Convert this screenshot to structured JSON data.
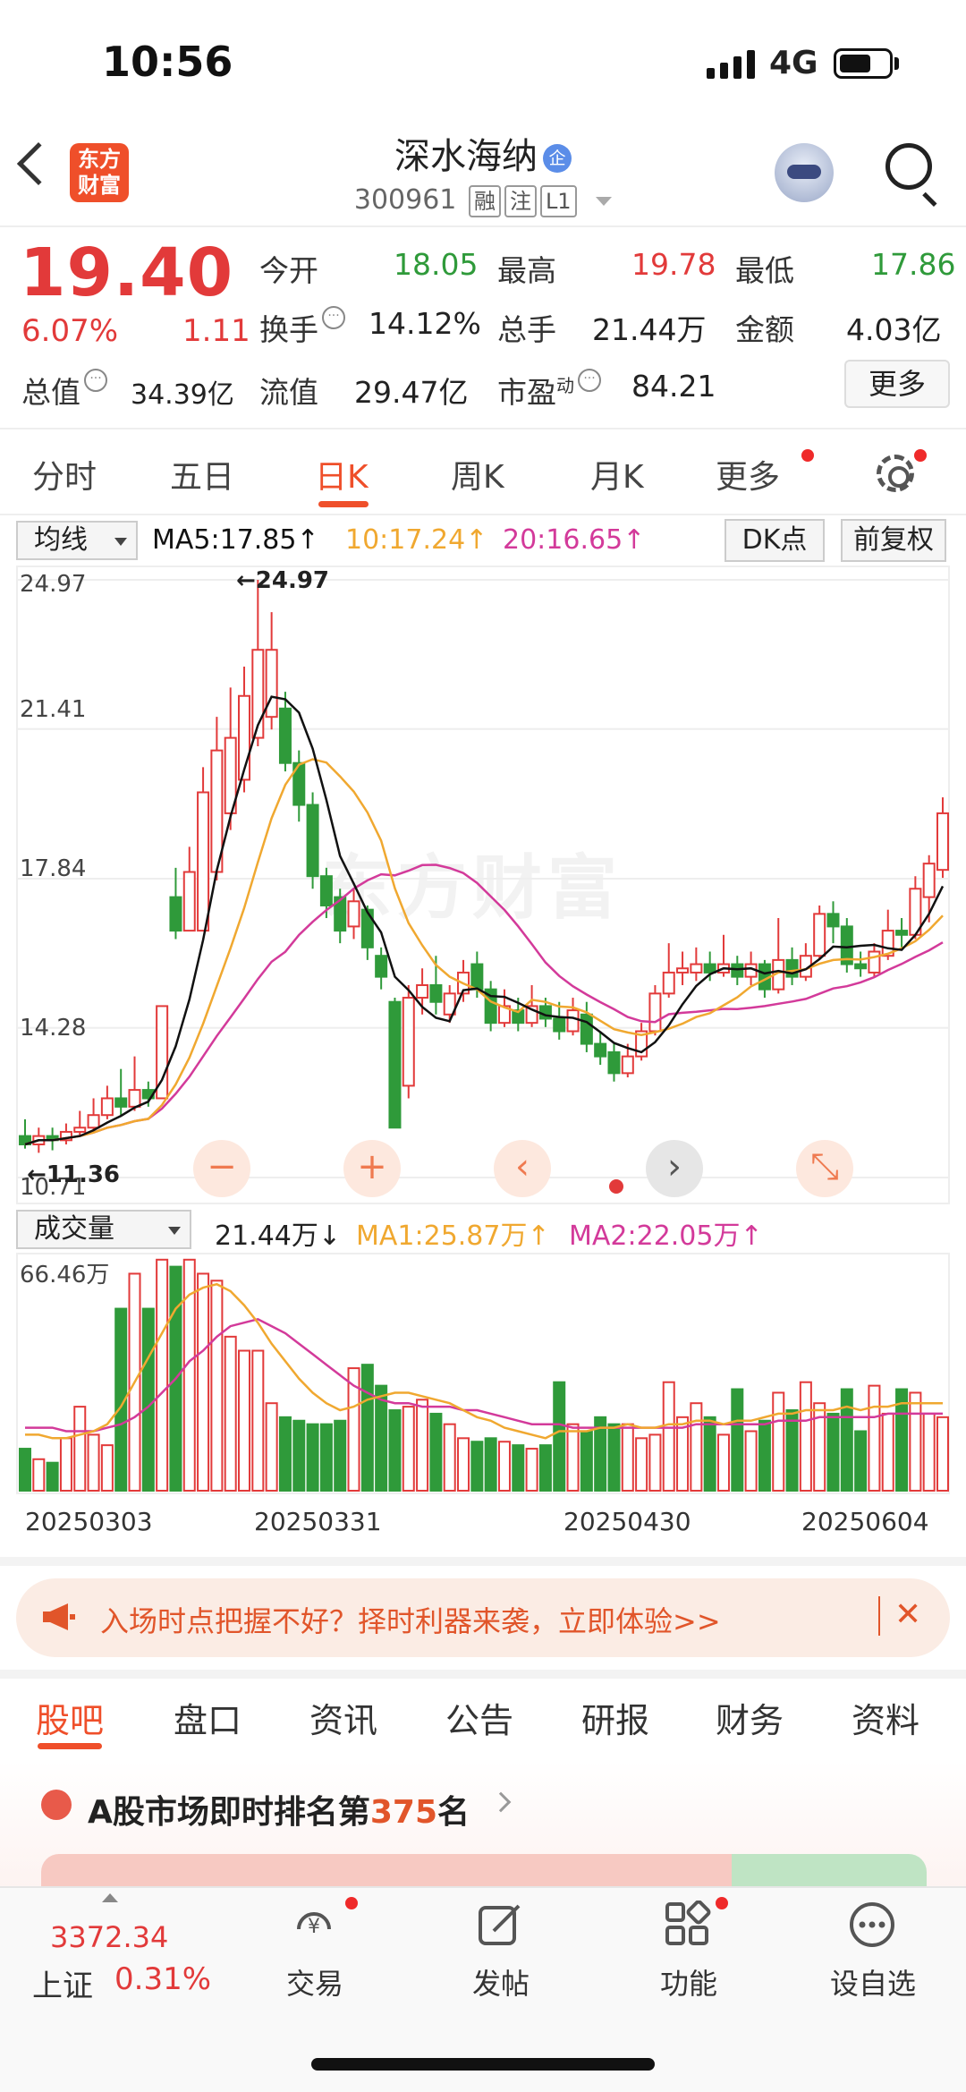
{
  "status_bar": {
    "time": "10:56",
    "network": "4G"
  },
  "header": {
    "logo_line1": "东方",
    "logo_line2": "财富",
    "stock_name": "深水海纳",
    "name_badge": "企",
    "stock_code": "300961",
    "tags": [
      "融",
      "注",
      "L1"
    ]
  },
  "quote": {
    "price": "19.40",
    "change_pct": "6.07%",
    "change": "1.11",
    "open_label": "今开",
    "open": "18.05",
    "high_label": "最高",
    "high": "19.78",
    "low_label": "最低",
    "low": "17.86",
    "turnover_label": "换手",
    "turnover": "14.12%",
    "volume_label": "总手",
    "volume": "21.44万",
    "amount_label": "金额",
    "amount": "4.03亿",
    "mktcap_label": "总值",
    "mktcap": "34.39亿",
    "float_label": "流值",
    "float": "29.47亿",
    "pe_label": "市盈",
    "pe_sup": "动",
    "pe": "84.21",
    "more": "更多",
    "colors": {
      "up": "#e23a3a",
      "down": "#2f9a3a"
    }
  },
  "tabs": [
    "分时",
    "五日",
    "日K",
    "周K",
    "月K",
    "更多"
  ],
  "active_tab": "日K",
  "ma_header": {
    "select": "均线",
    "ma5": "MA5:17.85↑",
    "ma10": "10:17.24↑",
    "ma20": "20:16.65↑",
    "dk": "DK点",
    "adjust": "前复权",
    "colors": {
      "ma5": "#111111",
      "ma10": "#f0a830",
      "ma20": "#d33a9a"
    }
  },
  "chart_data": [
    {
      "type": "candlestick",
      "title": "",
      "y_ticks": [
        "24.97",
        "21.41",
        "17.84",
        "14.28",
        "10.71"
      ],
      "ylim": [
        10.71,
        24.97
      ],
      "annotations": {
        "max_label": "←24.97",
        "min_label": "←11.36"
      },
      "watermark": "东方财富",
      "candles": [
        {
          "o": 11.7,
          "c": 11.5,
          "h": 12.1,
          "l": 11.4
        },
        {
          "o": 11.5,
          "c": 11.7,
          "h": 11.9,
          "l": 11.3
        },
        {
          "o": 11.7,
          "c": 11.6,
          "h": 11.9,
          "l": 11.36
        },
        {
          "o": 11.6,
          "c": 11.8,
          "h": 12.0,
          "l": 11.5
        },
        {
          "o": 11.8,
          "c": 11.9,
          "h": 12.3,
          "l": 11.7
        },
        {
          "o": 11.9,
          "c": 12.2,
          "h": 12.6,
          "l": 11.8
        },
        {
          "o": 12.2,
          "c": 12.6,
          "h": 12.9,
          "l": 12.1
        },
        {
          "o": 12.6,
          "c": 12.4,
          "h": 13.3,
          "l": 12.2
        },
        {
          "o": 12.4,
          "c": 12.8,
          "h": 13.6,
          "l": 12.3
        },
        {
          "o": 12.8,
          "c": 12.6,
          "h": 13.0,
          "l": 12.4
        },
        {
          "o": 12.6,
          "c": 14.8,
          "h": 14.8,
          "l": 12.6
        },
        {
          "o": 17.4,
          "c": 16.6,
          "h": 18.1,
          "l": 16.4
        },
        {
          "o": 16.6,
          "c": 18.0,
          "h": 18.6,
          "l": 16.6
        },
        {
          "o": 16.6,
          "c": 19.9,
          "h": 20.5,
          "l": 16.6
        },
        {
          "o": 18.0,
          "c": 20.9,
          "h": 21.7,
          "l": 17.8
        },
        {
          "o": 19.4,
          "c": 21.2,
          "h": 22.4,
          "l": 19.0
        },
        {
          "o": 20.2,
          "c": 22.2,
          "h": 22.9,
          "l": 19.9
        },
        {
          "o": 21.2,
          "c": 23.3,
          "h": 24.97,
          "l": 21.0
        },
        {
          "o": 21.7,
          "c": 23.3,
          "h": 24.2,
          "l": 21.4
        },
        {
          "o": 21.9,
          "c": 20.6,
          "h": 22.3,
          "l": 20.4
        },
        {
          "o": 20.6,
          "c": 19.6,
          "h": 20.9,
          "l": 19.2
        },
        {
          "o": 19.6,
          "c": 17.9,
          "h": 19.9,
          "l": 17.6
        },
        {
          "o": 17.9,
          "c": 17.2,
          "h": 18.1,
          "l": 16.9
        },
        {
          "o": 17.4,
          "c": 16.6,
          "h": 17.6,
          "l": 16.3
        },
        {
          "o": 16.7,
          "c": 17.3,
          "h": 17.6,
          "l": 16.4
        },
        {
          "o": 17.1,
          "c": 16.2,
          "h": 17.2,
          "l": 15.9
        },
        {
          "o": 16.0,
          "c": 15.5,
          "h": 16.2,
          "l": 15.2
        },
        {
          "o": 14.9,
          "c": 11.9,
          "h": 15.0,
          "l": 11.9
        },
        {
          "o": 12.9,
          "c": 15.0,
          "h": 15.3,
          "l": 12.6
        },
        {
          "o": 15.0,
          "c": 15.3,
          "h": 15.7,
          "l": 14.6
        },
        {
          "o": 15.3,
          "c": 14.9,
          "h": 16.0,
          "l": 14.6
        },
        {
          "o": 14.6,
          "c": 15.1,
          "h": 15.3,
          "l": 14.4
        },
        {
          "o": 15.1,
          "c": 15.6,
          "h": 15.9,
          "l": 14.9
        },
        {
          "o": 15.8,
          "c": 15.2,
          "h": 16.1,
          "l": 15.0
        },
        {
          "o": 15.2,
          "c": 14.4,
          "h": 15.4,
          "l": 14.2
        },
        {
          "o": 14.4,
          "c": 14.8,
          "h": 15.2,
          "l": 14.3
        },
        {
          "o": 14.7,
          "c": 14.4,
          "h": 15.0,
          "l": 14.2
        },
        {
          "o": 14.4,
          "c": 14.8,
          "h": 15.3,
          "l": 14.3
        },
        {
          "o": 14.8,
          "c": 14.5,
          "h": 15.0,
          "l": 14.3
        },
        {
          "o": 14.5,
          "c": 14.2,
          "h": 14.9,
          "l": 14.0
        },
        {
          "o": 14.2,
          "c": 14.7,
          "h": 15.0,
          "l": 14.1
        },
        {
          "o": 14.6,
          "c": 13.9,
          "h": 14.9,
          "l": 13.7
        },
        {
          "o": 13.9,
          "c": 13.6,
          "h": 14.2,
          "l": 13.4
        },
        {
          "o": 13.7,
          "c": 13.2,
          "h": 13.9,
          "l": 13.0
        },
        {
          "o": 13.2,
          "c": 13.6,
          "h": 13.9,
          "l": 13.1
        },
        {
          "o": 13.6,
          "c": 14.2,
          "h": 14.4,
          "l": 13.5
        },
        {
          "o": 14.2,
          "c": 15.1,
          "h": 15.3,
          "l": 14.1
        },
        {
          "o": 15.1,
          "c": 15.6,
          "h": 16.3,
          "l": 15.0
        },
        {
          "o": 15.6,
          "c": 15.7,
          "h": 16.1,
          "l": 15.3
        },
        {
          "o": 15.6,
          "c": 15.8,
          "h": 16.2,
          "l": 15.4
        },
        {
          "o": 15.8,
          "c": 15.6,
          "h": 16.1,
          "l": 15.4
        },
        {
          "o": 15.6,
          "c": 15.8,
          "h": 16.5,
          "l": 15.5
        },
        {
          "o": 15.8,
          "c": 15.5,
          "h": 16.0,
          "l": 15.3
        },
        {
          "o": 15.5,
          "c": 15.8,
          "h": 16.1,
          "l": 15.3
        },
        {
          "o": 15.8,
          "c": 15.2,
          "h": 15.9,
          "l": 15.0
        },
        {
          "o": 15.2,
          "c": 15.9,
          "h": 16.9,
          "l": 15.1
        },
        {
          "o": 15.9,
          "c": 15.5,
          "h": 16.2,
          "l": 15.3
        },
        {
          "o": 15.5,
          "c": 16.0,
          "h": 16.3,
          "l": 15.4
        },
        {
          "o": 16.0,
          "c": 17.0,
          "h": 17.2,
          "l": 15.9
        },
        {
          "o": 17.0,
          "c": 16.7,
          "h": 17.3,
          "l": 16.3
        },
        {
          "o": 16.7,
          "c": 15.8,
          "h": 16.9,
          "l": 15.6
        },
        {
          "o": 15.8,
          "c": 15.7,
          "h": 16.1,
          "l": 15.5
        },
        {
          "o": 15.6,
          "c": 16.1,
          "h": 16.3,
          "l": 15.5
        },
        {
          "o": 16.0,
          "c": 16.6,
          "h": 17.1,
          "l": 15.9
        },
        {
          "o": 16.6,
          "c": 16.5,
          "h": 16.9,
          "l": 16.2
        },
        {
          "o": 16.5,
          "c": 17.6,
          "h": 17.9,
          "l": 16.4
        },
        {
          "o": 17.4,
          "c": 18.2,
          "h": 18.4,
          "l": 16.8
        },
        {
          "o": 18.05,
          "c": 19.4,
          "h": 19.78,
          "l": 17.86
        }
      ]
    },
    {
      "type": "bar",
      "title": "",
      "label": "成交量",
      "current": "21.44万↓",
      "ma1": "MA1:25.87万↑",
      "ma2": "MA2:22.05万↑",
      "y_max_label": "66.46万",
      "ylim": [
        0,
        66.46
      ],
      "x_labels": [
        "20250303",
        "20250331",
        "20250430",
        "20250604"
      ],
      "values": [
        12,
        9,
        8,
        15,
        24,
        16,
        13,
        52,
        62,
        52,
        66,
        64,
        66,
        62,
        60,
        44,
        40,
        40,
        25,
        21,
        20,
        19,
        19,
        20,
        35,
        36,
        30,
        23,
        24,
        26,
        22,
        19,
        15,
        14,
        15,
        14,
        13,
        12,
        13,
        31,
        19,
        17,
        21,
        19,
        19,
        15,
        16,
        31,
        21,
        25,
        21,
        16,
        29,
        17,
        20,
        28,
        23,
        31,
        25,
        22,
        29,
        17,
        30,
        22,
        29,
        28,
        22,
        21
      ],
      "ma1_values": [
        16,
        16,
        15,
        15,
        16,
        17,
        19,
        24,
        31,
        38,
        45,
        52,
        56,
        58,
        59,
        57,
        53,
        48,
        42,
        37,
        32,
        28,
        25,
        23,
        24,
        26,
        27,
        28,
        28,
        27,
        26,
        25,
        23,
        21,
        20,
        18,
        17,
        16,
        15,
        17,
        17,
        17,
        18,
        18,
        19,
        18,
        18,
        19,
        19,
        20,
        20,
        19,
        20,
        20,
        21,
        22,
        22,
        23,
        23,
        23,
        24,
        23,
        24,
        24,
        25,
        25,
        25,
        25
      ],
      "ma2_values": [
        18,
        18,
        18,
        17,
        17,
        17,
        18,
        19,
        21,
        24,
        28,
        32,
        37,
        40,
        44,
        47,
        48,
        49,
        47,
        45,
        42,
        39,
        36,
        33,
        30,
        28,
        26,
        25,
        25,
        24,
        24,
        24,
        23,
        23,
        22,
        21,
        20,
        19,
        19,
        19,
        18,
        18,
        18,
        18,
        18,
        18,
        18,
        18,
        18,
        19,
        19,
        19,
        19,
        19,
        19,
        20,
        20,
        20,
        21,
        21,
        21,
        21,
        21,
        22,
        22,
        22,
        22,
        22
      ]
    }
  ],
  "chart_controls": {
    "zoom_out": "−",
    "zoom_in": "+",
    "prev": "‹",
    "next": "›",
    "fullscreen": "⤡"
  },
  "banner": {
    "text": "入场时点把握不好？择时利器来袭，立即体验>>",
    "close": "✕"
  },
  "section_tabs": [
    "股吧",
    "盘口",
    "资讯",
    "公告",
    "研报",
    "财务",
    "资料"
  ],
  "rank": {
    "prefix": "A股市场即时排名第",
    "number": "375",
    "suffix": "名"
  },
  "bottom_nav": {
    "index_value": "3372.34",
    "index_name": "上证",
    "index_pct": "0.31%",
    "items": [
      "交易",
      "发帖",
      "功能",
      "设自选"
    ]
  }
}
